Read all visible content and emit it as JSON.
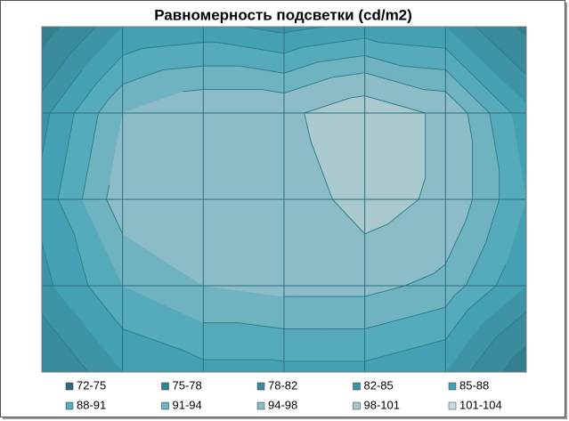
{
  "chart_data": {
    "type": "contour",
    "title": "Равномерность подсветки (cd/m2)",
    "values": [
      [
        76,
        85,
        86,
        84,
        86,
        85,
        77
      ],
      [
        84,
        94,
        97,
        97,
        101,
        97,
        86
      ],
      [
        86,
        96,
        97,
        95,
        100,
        97,
        88
      ],
      [
        84,
        91,
        94,
        95,
        95,
        93,
        85
      ],
      [
        78,
        85,
        87,
        87,
        87,
        85,
        75
      ]
    ],
    "bands": [
      {
        "name": "72-75",
        "range": [
          72,
          75
        ],
        "color": "#2b6c7c"
      },
      {
        "name": "75-78",
        "range": [
          75,
          78
        ],
        "color": "#337e8f"
      },
      {
        "name": "78-82",
        "range": [
          78,
          82
        ],
        "color": "#3a8b9b"
      },
      {
        "name": "82-85",
        "range": [
          82,
          85
        ],
        "color": "#3e94a6"
      },
      {
        "name": "85-88",
        "range": [
          85,
          88
        ],
        "color": "#44a1b4"
      },
      {
        "name": "88-91",
        "range": [
          88,
          91
        ],
        "color": "#55aabb"
      },
      {
        "name": "91-94",
        "range": [
          91,
          94
        ],
        "color": "#70b3c0"
      },
      {
        "name": "94-98",
        "range": [
          94,
          98
        ],
        "color": "#8cbcc5"
      },
      {
        "name": "98-101",
        "range": [
          98,
          101
        ],
        "color": "#a9c9cf"
      },
      {
        "name": "101-104",
        "range": [
          101,
          104
        ],
        "color": "#c3dde2"
      }
    ],
    "grid": true
  }
}
